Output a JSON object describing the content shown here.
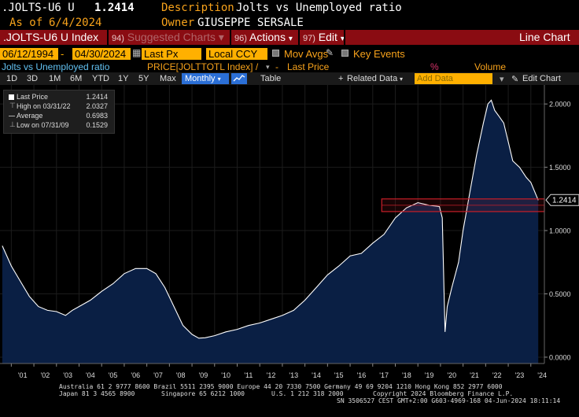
{
  "header": {
    "ticker": ".JOLTS-U6 U",
    "last_value": "1.2414",
    "description_label": "Description",
    "description": "Jolts vs Unemployed ratio",
    "as_of_label": "As of",
    "as_of": "6/4/2024",
    "owner_label": "Owner",
    "owner": "GIUSEPPE SERSALE"
  },
  "toolbar": {
    "index_label": ".JOLTS-U6 U Index",
    "suggested_num": "94)",
    "suggested_label": "Suggested Charts",
    "actions_num": "96)",
    "actions_label": "Actions",
    "edit_num": "97)",
    "edit_label": "Edit",
    "line_chart_label": "Line Chart"
  },
  "controls": {
    "start_date": "06/12/1994",
    "end_date": "04/30/2024",
    "price_field": "Last Px",
    "currency": "Local CCY",
    "mov_avgs_label": "Mov Avgs",
    "key_events_label": "Key Events"
  },
  "series_row": {
    "series_name": "Jolts vs Unemployed ratio",
    "formula": "PRICE[JOLTTOTL Index] /",
    "last_price_label": "Last Price",
    "pct_label": "%",
    "volume_label": "Volume"
  },
  "timebar": {
    "periods": [
      "1D",
      "3D",
      "1M",
      "6M",
      "YTD",
      "1Y",
      "5Y",
      "Max"
    ],
    "frequency": "Monthly",
    "table_label": "Table",
    "related_data_label": "Related Data",
    "add_data_placeholder": "Add Data",
    "edit_chart_label": "Edit Chart"
  },
  "legend": {
    "last_label": "Last Price",
    "last_value": "1.2414",
    "high_label": "High on 03/31/22",
    "high_value": "2.0327",
    "avg_label": "Average",
    "avg_value": "0.6983",
    "low_label": "Low on 07/31/09",
    "low_value": "0.1529"
  },
  "chart_data": {
    "type": "area",
    "x_label_format": "'YY",
    "x_ticks": [
      "'01",
      "'02",
      "'03",
      "'04",
      "'05",
      "'06",
      "'07",
      "'08",
      "'09",
      "'10",
      "'11",
      "'12",
      "'13",
      "'14",
      "'15",
      "'16",
      "'17",
      "'18",
      "'19",
      "'20",
      "'21",
      "'22",
      "'23",
      "'24"
    ],
    "y_ticks": [
      "0.0000",
      "0.5000",
      "1.0000",
      "1.5000",
      "2.0000"
    ],
    "ylim": [
      -0.05,
      2.15
    ],
    "xlim": [
      2000.5,
      2024.6
    ],
    "last_value_label": "1.2414",
    "band": [
      1.15,
      1.25
    ],
    "area_color": "#0a1f44",
    "line_color": "#ffffff",
    "band_color": "#c81e28",
    "series": [
      {
        "x": [
          2000.6,
          2001.0,
          2001.4,
          2001.8,
          2002.2,
          2002.6,
          2003.0,
          2003.4,
          2003.7,
          2004.0,
          2004.5,
          2005.0,
          2005.5,
          2006.0,
          2006.5,
          2007.0,
          2007.4,
          2007.8,
          2008.2,
          2008.6,
          2009.0,
          2009.3,
          2009.58,
          2010.0,
          2010.5,
          2011.0,
          2011.5,
          2012.0,
          2012.5,
          2013.0,
          2013.5,
          2014.0,
          2014.5,
          2015.0,
          2015.5,
          2016.0,
          2016.5,
          2017.0,
          2017.5,
          2018.0,
          2018.5,
          2019.0,
          2019.5,
          2019.95,
          2020.08,
          2020.2,
          2020.3,
          2020.5,
          2020.8,
          2021.0,
          2021.3,
          2021.6,
          2021.9,
          2022.1,
          2022.25,
          2022.4,
          2022.6,
          2022.8,
          2023.0,
          2023.2,
          2023.5,
          2023.8,
          2024.0,
          2024.33
        ],
        "y": [
          0.88,
          0.72,
          0.6,
          0.48,
          0.4,
          0.37,
          0.36,
          0.33,
          0.37,
          0.4,
          0.45,
          0.52,
          0.58,
          0.66,
          0.7,
          0.7,
          0.66,
          0.55,
          0.4,
          0.25,
          0.18,
          0.15,
          0.153,
          0.17,
          0.2,
          0.22,
          0.25,
          0.27,
          0.3,
          0.33,
          0.37,
          0.45,
          0.55,
          0.65,
          0.72,
          0.8,
          0.82,
          0.9,
          0.97,
          1.1,
          1.18,
          1.22,
          1.2,
          1.19,
          1.1,
          0.2,
          0.4,
          0.55,
          0.75,
          1.0,
          1.3,
          1.6,
          1.85,
          2.0,
          2.03,
          1.95,
          1.9,
          1.85,
          1.7,
          1.55,
          1.5,
          1.42,
          1.38,
          1.24
        ]
      }
    ]
  },
  "footer": {
    "line1": "Australia 61 2 9777 8600 Brazil 5511 2395 9000 Europe 44 20 7330 7500 Germany 49 69 9204 1210 Hong Kong 852 2977 6000",
    "line2a": "Japan 81 3 4565 8900",
    "line2b": "Singapore 65 6212 1000",
    "line2c": "U.S. 1 212 318 2000",
    "line2d": "Copyright 2024 Bloomberg Finance L.P.",
    "line3": "SN 3506527 CEST GMT+2:00 G603-4969-168 04-Jun-2024 18:11:14"
  }
}
